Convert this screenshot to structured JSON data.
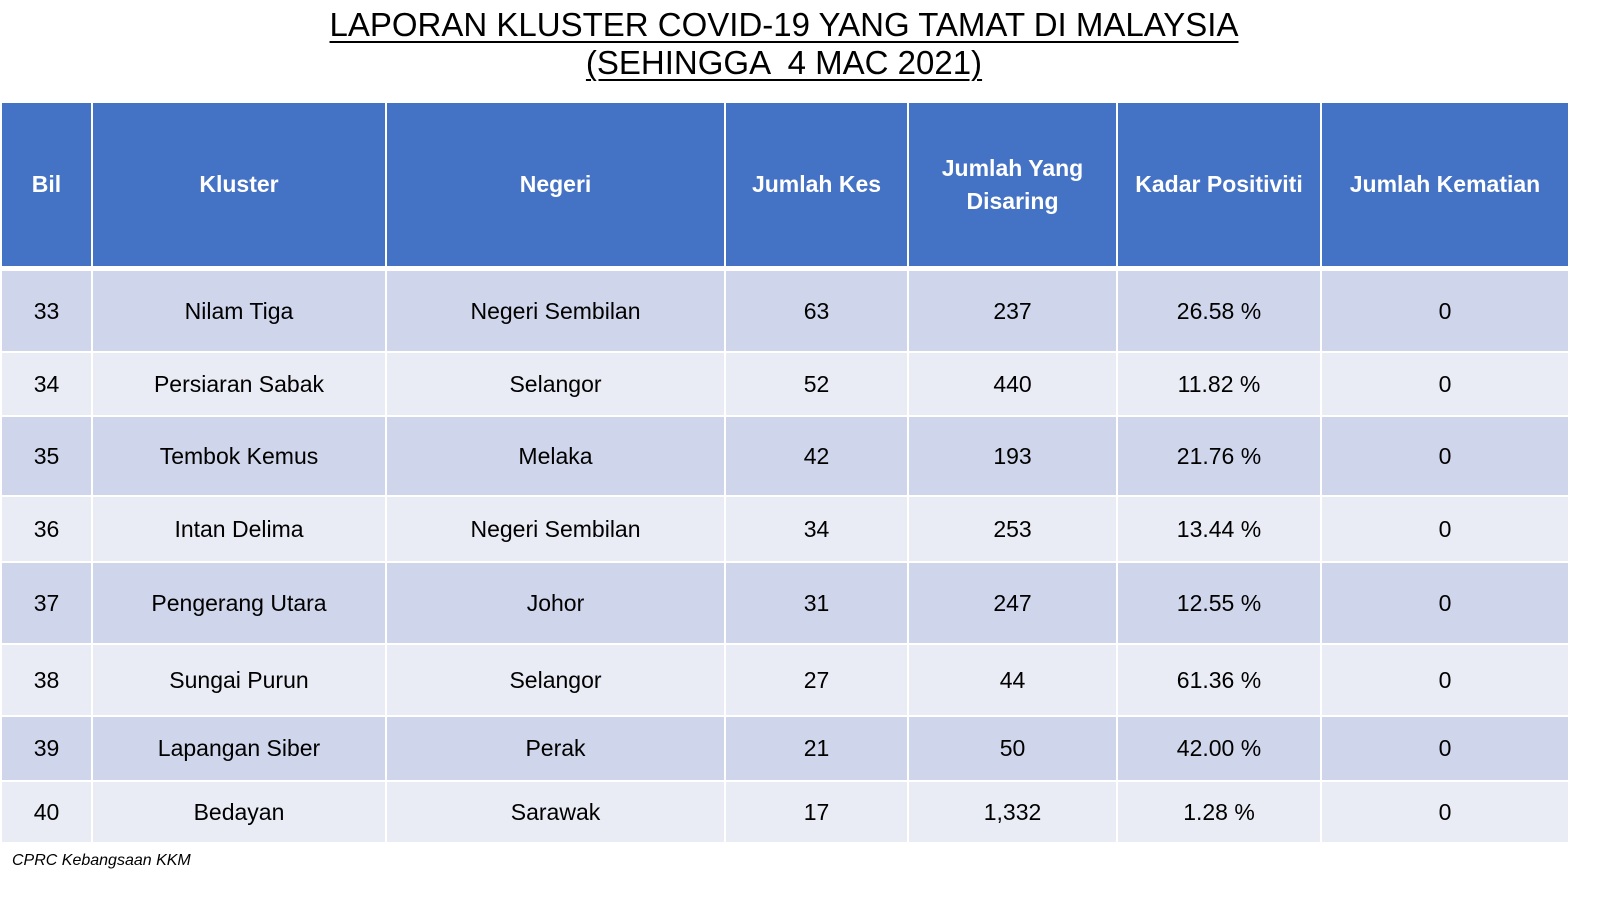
{
  "title": {
    "line1": "LAPORAN KLUSTER COVID-19 YANG TAMAT DI MALAYSIA",
    "line2": "(SEHINGGA  4 MAC 2021)"
  },
  "table": {
    "headers": [
      "Bil",
      "Kluster",
      "Negeri",
      "Jumlah Kes",
      "Jumlah Yang Disaring",
      "Kadar Positiviti",
      "Jumlah Kematian"
    ],
    "rows": [
      [
        "33",
        "Nilam Tiga",
        "Negeri Sembilan",
        "63",
        "237",
        "26.58 %",
        "0"
      ],
      [
        "34",
        "Persiaran Sabak",
        "Selangor",
        "52",
        "440",
        "11.82 %",
        "0"
      ],
      [
        "35",
        "Tembok Kemus",
        "Melaka",
        "42",
        "193",
        "21.76 %",
        "0"
      ],
      [
        "36",
        "Intan Delima",
        "Negeri Sembilan",
        "34",
        "253",
        "13.44 %",
        "0"
      ],
      [
        "37",
        "Pengerang Utara",
        "Johor",
        "31",
        "247",
        "12.55 %",
        "0"
      ],
      [
        "38",
        "Sungai Purun",
        "Selangor",
        "27",
        "44",
        "61.36 %",
        "0"
      ],
      [
        "39",
        "Lapangan Siber",
        "Perak",
        "21",
        "50",
        "42.00 %",
        "0"
      ],
      [
        "40",
        "Bedayan",
        "Sarawak",
        "17",
        "1,332",
        "1.28 %",
        "0"
      ]
    ]
  },
  "footnote": "CPRC Kebangsaan KKM",
  "colors": {
    "header_bg": "#4472c4",
    "row_dark": "#cfd5ea",
    "row_light": "#e9ebf5"
  }
}
